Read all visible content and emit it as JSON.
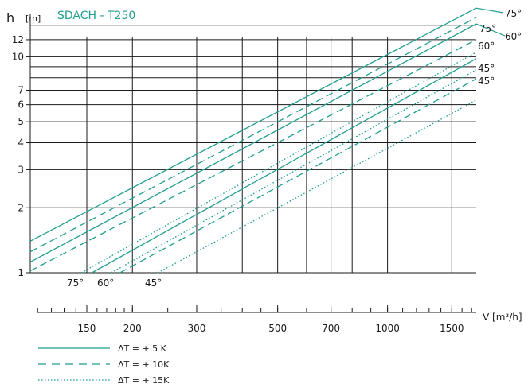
{
  "chart_data": {
    "type": "line",
    "title": "SDACH - T250",
    "ylabel": "h",
    "yunit": "[m]",
    "xlabel": "V [m³/h]",
    "xscale": "log",
    "yscale": "log",
    "xlim": [
      105,
      1750
    ],
    "ylim": [
      1,
      16
    ],
    "yticks": [
      1,
      2,
      3,
      4,
      5,
      6,
      7,
      10,
      12
    ],
    "ygrid": [
      1,
      2,
      3,
      4,
      5,
      6,
      7,
      8,
      9,
      10,
      12,
      14
    ],
    "xticks": [
      150,
      200,
      300,
      500,
      700,
      1000,
      1500
    ],
    "xgrid": [
      150,
      200,
      300,
      400,
      500,
      600,
      700,
      800,
      1000,
      1500
    ],
    "xminor": [
      110,
      120,
      130,
      140,
      150,
      160,
      170,
      180,
      190,
      200,
      250,
      300,
      350,
      400,
      450,
      500,
      600,
      700,
      800,
      900,
      1000,
      1100,
      1200,
      1300,
      1400,
      1500,
      1600,
      1700
    ],
    "grid": true,
    "legend": {
      "placement": "bottom-left",
      "entries": [
        {
          "label": "ΔT = + 5 K",
          "style": "solid"
        },
        {
          "label": "ΔT = + 10K",
          "style": "dashed"
        },
        {
          "label": "ΔT = + 15K",
          "style": "dotted"
        }
      ]
    },
    "series": [
      {
        "style": "solid",
        "angle": "75°",
        "x": [
          105,
          1750
        ],
        "y": [
          1.4,
          16.8
        ]
      },
      {
        "style": "dashed",
        "angle": "75°",
        "x": [
          105,
          1750
        ],
        "y": [
          1.25,
          15.2
        ]
      },
      {
        "style": "solid",
        "angle": "60°",
        "x": [
          105,
          1750
        ],
        "y": [
          1.12,
          14.2
        ]
      },
      {
        "style": "dashed",
        "angle": "60°",
        "x": [
          105,
          1750
        ],
        "y": [
          1.02,
          12.0
        ]
      },
      {
        "style": "dotted",
        "angle": "75°",
        "x": [
          145,
          1750
        ],
        "y": [
          1.0,
          10.5
        ]
      },
      {
        "style": "solid",
        "angle": "45°",
        "x": [
          155,
          1750
        ],
        "y": [
          1.0,
          9.8
        ]
      },
      {
        "style": "dotted",
        "angle": "60°",
        "x": [
          175,
          1750
        ],
        "y": [
          1.0,
          8.7
        ]
      },
      {
        "style": "dashed",
        "angle": "45°",
        "x": [
          185,
          1750
        ],
        "y": [
          1.0,
          7.9
        ]
      },
      {
        "style": "dotted",
        "angle": "45°",
        "x": [
          235,
          1750
        ],
        "y": [
          1.0,
          6.3
        ]
      }
    ],
    "annotations": {
      "top": [
        {
          "text": "75°",
          "x": 1680,
          "y": 16.2
        },
        {
          "text": "75°",
          "x": 1600,
          "y": 14.7
        },
        {
          "text": "60°",
          "x": 1660,
          "y": 13.7
        },
        {
          "text": "60°",
          "x": 1600,
          "y": 12.2
        },
        {
          "text": "45°",
          "x": 1600,
          "y": 9.9
        },
        {
          "text": "45°",
          "x": 1600,
          "y": 9.2
        }
      ],
      "bottom": [
        {
          "text": "75°",
          "x": 133,
          "y": 0.92
        },
        {
          "text": "60°",
          "x": 165,
          "y": 0.92
        },
        {
          "text": "45°",
          "x": 232,
          "y": 0.92
        }
      ]
    },
    "colors": {
      "series": "#1f9e8f",
      "grid": "#1a1a1a",
      "title": "#1f9e8f"
    }
  }
}
